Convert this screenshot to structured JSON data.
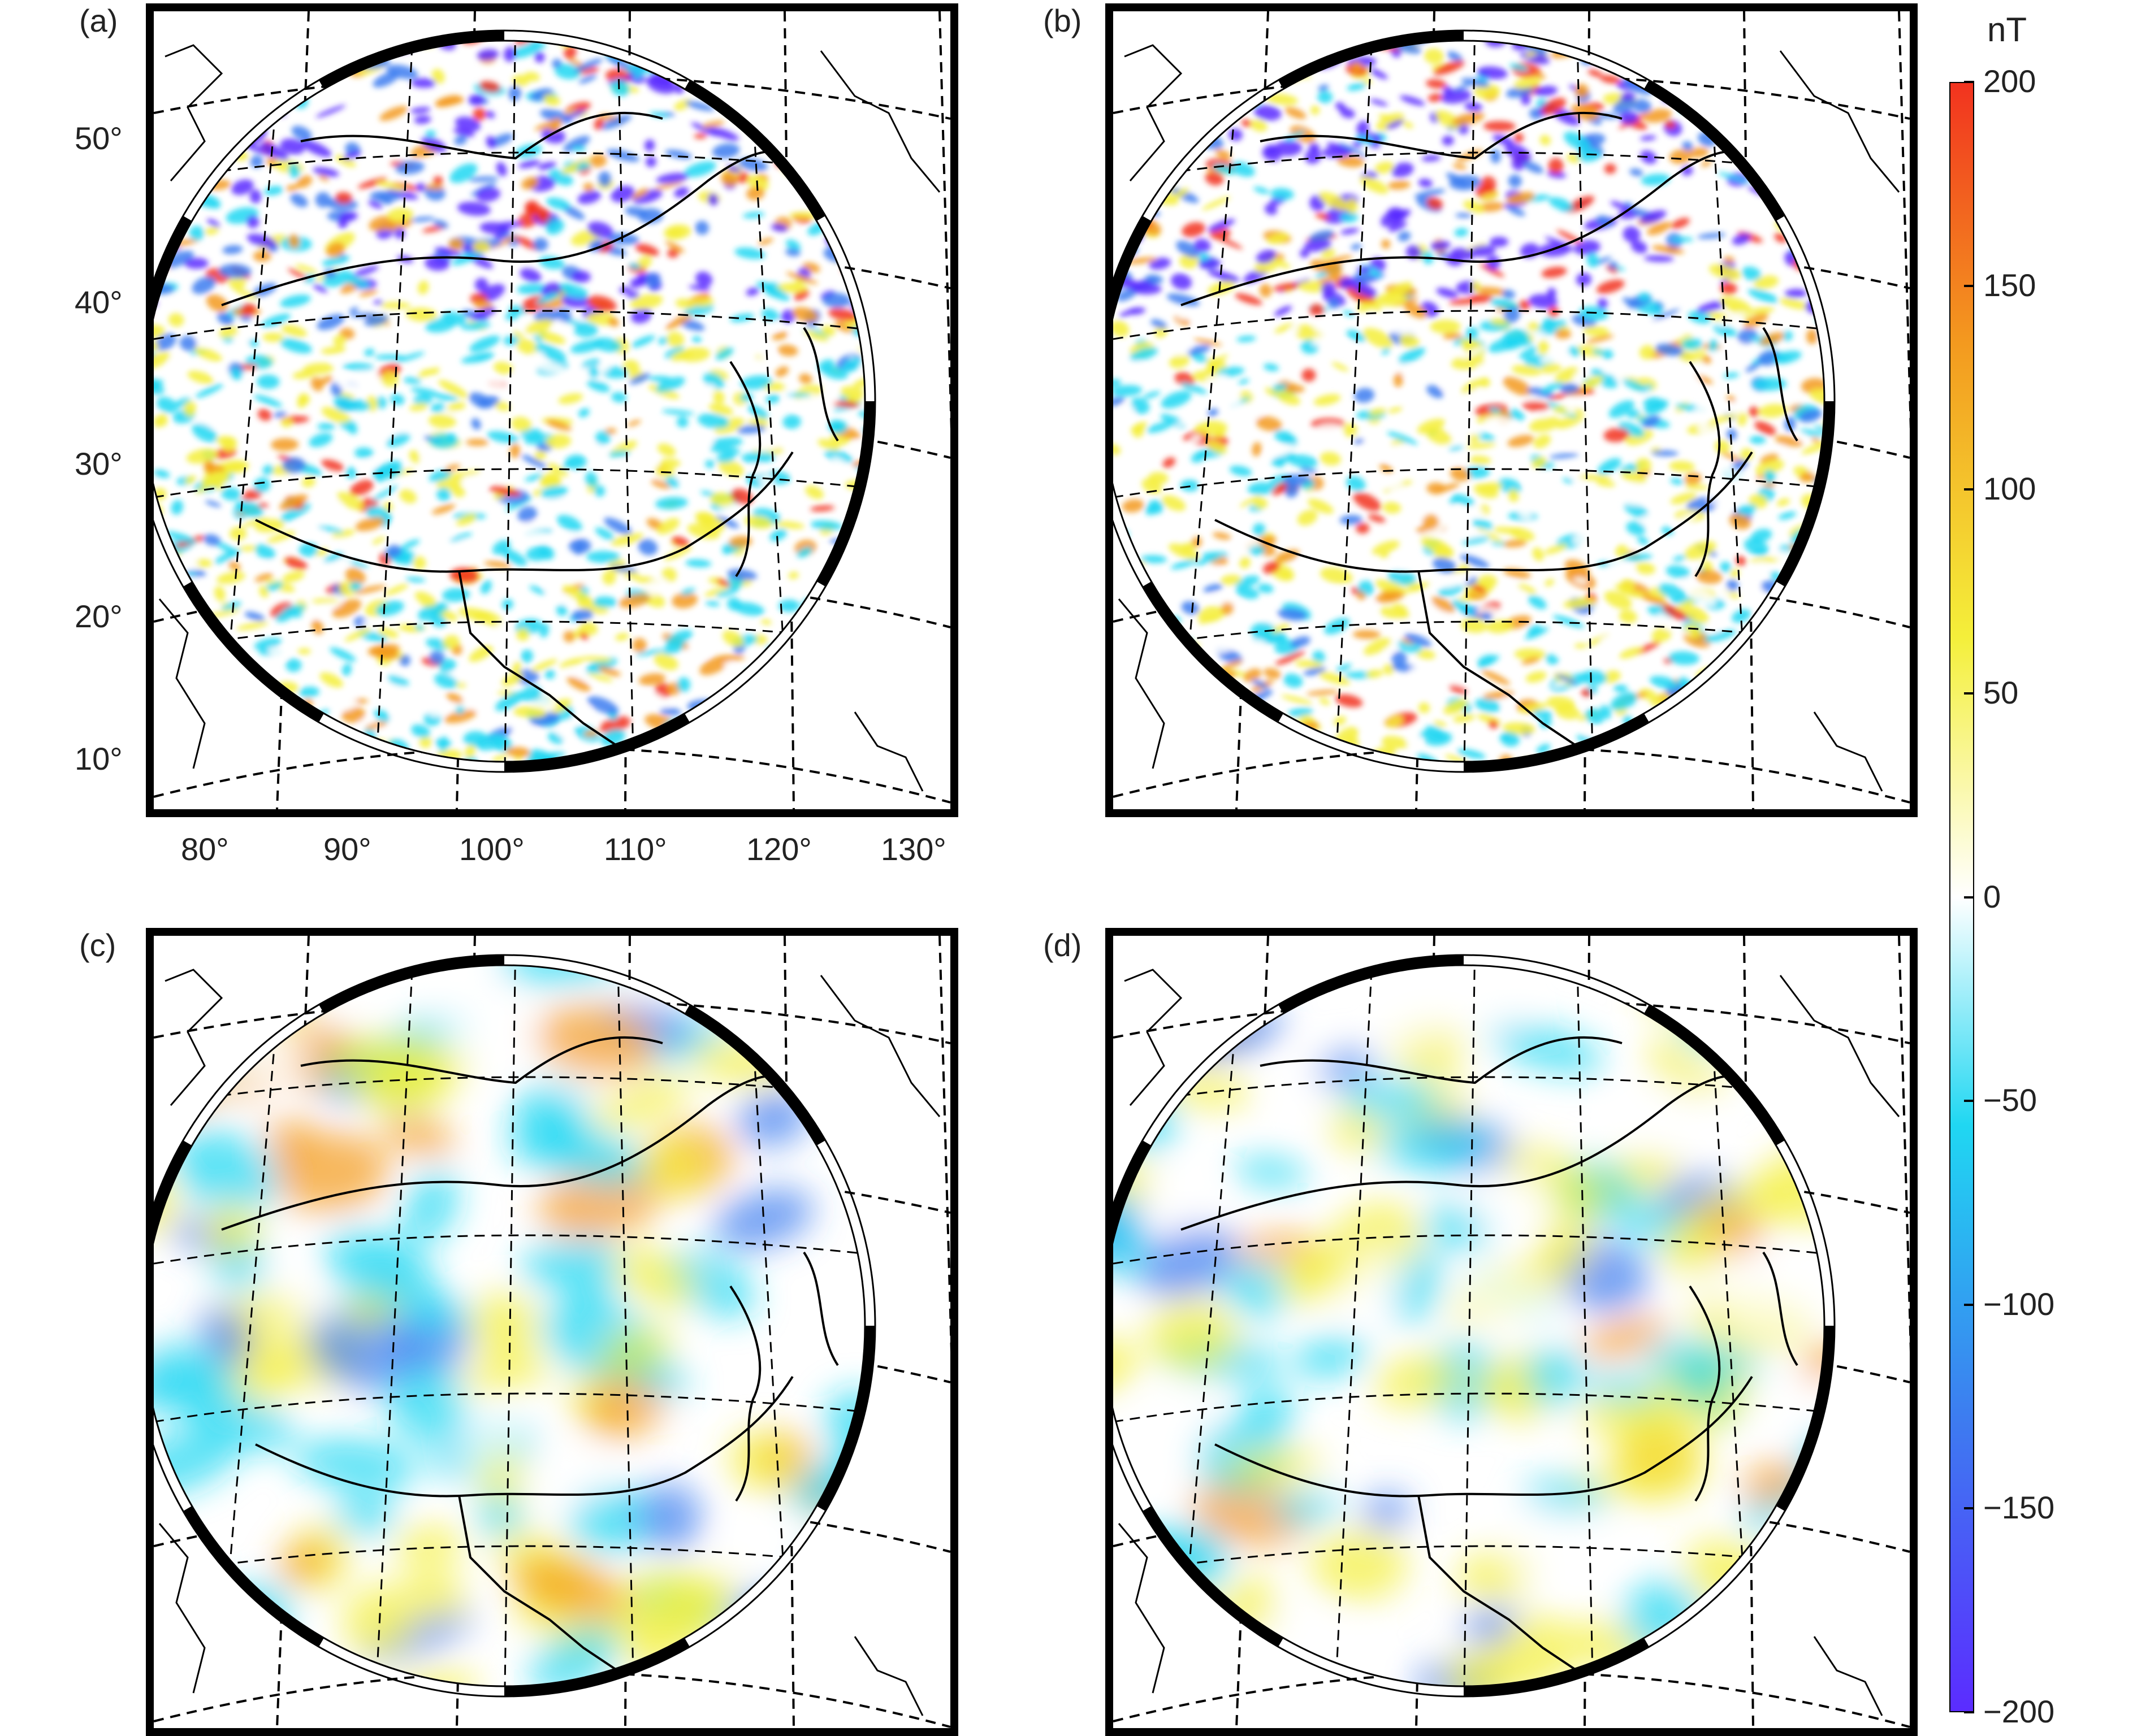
{
  "panels": [
    {
      "label": "(a)",
      "style": "fine",
      "seed": 11
    },
    {
      "label": "(b)",
      "style": "fine",
      "seed": 23
    },
    {
      "label": "(c)",
      "style": "smooth",
      "seed": 37
    },
    {
      "label": "(d)",
      "style": "smooth",
      "seed": 53
    }
  ],
  "lat_ticks": [
    "50°",
    "40°",
    "30°",
    "20°",
    "10°"
  ],
  "lon_ticks": [
    "80°",
    "90°",
    "100°",
    "110°",
    "120°",
    "130°"
  ],
  "colorbar": {
    "unit": "nT",
    "min": -200,
    "max": 200,
    "ticks": [
      "200",
      "150",
      "100",
      "50",
      "0",
      "−50",
      "−100",
      "−150",
      "−200"
    ],
    "colors": [
      "#5b2cff",
      "#3d7cf0",
      "#20d7f2",
      "#ffffff",
      "#f4ef3a",
      "#f39a1f",
      "#f2331f"
    ]
  }
}
